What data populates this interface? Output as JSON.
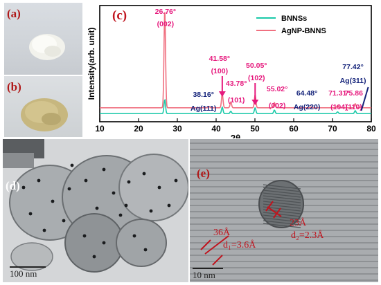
{
  "panels": {
    "a": {
      "label": "(a)"
    },
    "b": {
      "label": "(b)"
    },
    "c": {
      "label": "(c)"
    },
    "d": {
      "label": "(d)",
      "scale_bar": "100 nm"
    },
    "e": {
      "label": "(e)",
      "scale_bar": "10 nm",
      "annotations": {
        "width_big": "36Å",
        "d1": "d₁=3.6Å",
        "width_small": "23Å",
        "d2": "d₂=2.3Å"
      }
    }
  },
  "colors": {
    "bnns": "#19c9a8",
    "agnp": "#f07080",
    "peak_label": "#e6197d",
    "ag_label": "#14237a",
    "annotation": "#c0141e"
  },
  "chart_data": {
    "type": "line",
    "xlabel": "2θ",
    "ylabel": "Intensity(arb. unit)",
    "xlim": [
      10,
      80
    ],
    "xticks": [
      10,
      20,
      30,
      40,
      50,
      60,
      70,
      80
    ],
    "legend_position": "top-right",
    "series": [
      {
        "name": "BNNSs",
        "color": "#19c9a8",
        "baseline": 0.07,
        "peaks": [
          {
            "x": 26.76,
            "h": 0.12
          },
          {
            "x": 41.58,
            "h": 0.055
          },
          {
            "x": 43.78,
            "h": 0.02
          },
          {
            "x": 50.05,
            "h": 0.05
          },
          {
            "x": 55.02,
            "h": 0.03
          },
          {
            "x": 71.31,
            "h": 0.015
          },
          {
            "x": 75.86,
            "h": 0.025
          }
        ]
      },
      {
        "name": "AgNP-BNNS",
        "color": "#f07080",
        "baseline": 0.12,
        "peaks": [
          {
            "x": 26.76,
            "h": 0.84
          },
          {
            "x": 38.16,
            "h": 0.012
          },
          {
            "x": 41.58,
            "h": 0.12
          },
          {
            "x": 43.78,
            "h": 0.05
          },
          {
            "x": 50.05,
            "h": 0.11
          },
          {
            "x": 55.02,
            "h": 0.045
          },
          {
            "x": 64.48,
            "h": 0.008
          },
          {
            "x": 71.31,
            "h": 0.02
          },
          {
            "x": 75.86,
            "h": 0.035
          },
          {
            "x": 77.42,
            "h": 0.01
          }
        ]
      }
    ],
    "annotations": [
      {
        "angle": "26.76°",
        "hkl": "(002)",
        "x": 26.76,
        "kind": "bn"
      },
      {
        "angle": "41.58°",
        "hkl": "(100)",
        "x": 41.58,
        "kind": "bn"
      },
      {
        "angle": "43.78°",
        "hkl": "(101)",
        "x": 43.78,
        "kind": "bn"
      },
      {
        "angle": "50.05°",
        "hkl": "(102)",
        "x": 50.05,
        "kind": "bn"
      },
      {
        "angle": "55.02°",
        "hkl": "(002)",
        "x": 55.02,
        "kind": "bn"
      },
      {
        "angle": "71.31°",
        "hkl": "(104)",
        "x": 71.31,
        "kind": "bn"
      },
      {
        "angle": "75.86",
        "hkl": "(110)",
        "x": 75.86,
        "kind": "bn"
      },
      {
        "angle": "38.16°",
        "hkl": "Ag(111)",
        "x": 38.16,
        "kind": "ag"
      },
      {
        "angle": "64.48°",
        "hkl": "Ag(220)",
        "x": 64.48,
        "kind": "ag"
      },
      {
        "angle": "77.42°",
        "hkl": "Ag(311)",
        "x": 77.42,
        "kind": "ag"
      }
    ]
  }
}
